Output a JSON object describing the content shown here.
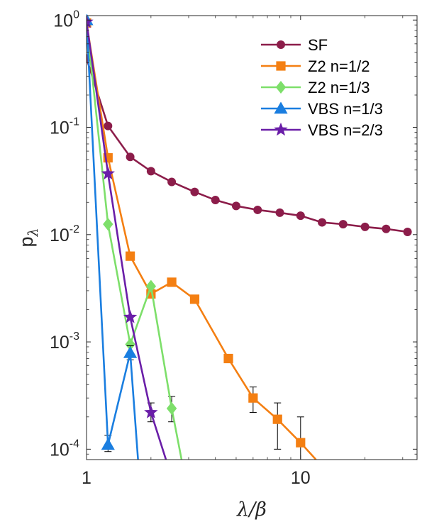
{
  "chart_data": {
    "type": "line",
    "title": "",
    "xlabel": "λ/β",
    "ylabel_main": "p",
    "ylabel_sub": "λ",
    "x_scale": "log",
    "y_scale": "log",
    "xlim": [
      1,
      35
    ],
    "ylim": [
      8e-05,
      1.1
    ],
    "x_ticks": [
      {
        "value": 1,
        "label": "1"
      },
      {
        "value": 10,
        "label": "10"
      }
    ],
    "y_ticks": [
      {
        "value": 1,
        "base": "10",
        "exp": "0"
      },
      {
        "value": 0.1,
        "base": "10",
        "exp": "-1"
      },
      {
        "value": 0.01,
        "base": "10",
        "exp": "-2"
      },
      {
        "value": 0.001,
        "base": "10",
        "exp": "-3"
      },
      {
        "value": 0.0001,
        "base": "10",
        "exp": "-4"
      }
    ],
    "grid": false,
    "legend_position": "top-right",
    "series": [
      {
        "name": "SF",
        "color": "#8c1d4a",
        "marker": "circle",
        "points": [
          [
            1,
            0.44
          ],
          [
            1.26,
            0.103
          ],
          [
            1.6,
            0.053
          ],
          [
            2.0,
            0.039
          ],
          [
            2.5,
            0.031
          ],
          [
            3.2,
            0.025
          ],
          [
            4.0,
            0.021
          ],
          [
            5.0,
            0.0185
          ],
          [
            6.3,
            0.017
          ],
          [
            8.0,
            0.016
          ],
          [
            10.0,
            0.015
          ],
          [
            12.6,
            0.013
          ],
          [
            15.8,
            0.0125
          ],
          [
            20.0,
            0.0118
          ],
          [
            25.1,
            0.0113
          ],
          [
            31.6,
            0.0106
          ]
        ]
      },
      {
        "name": "Z2 n=1/2",
        "color": "#f47f12",
        "marker": "square",
        "points": [
          [
            1,
            0.94
          ],
          [
            1.26,
            0.052
          ],
          [
            1.6,
            0.0063
          ],
          [
            2.0,
            0.0028
          ],
          [
            2.5,
            0.0036
          ],
          [
            3.2,
            0.0025
          ],
          [
            4.6,
            0.0007
          ],
          [
            6.0,
            0.0003
          ],
          [
            7.8,
            0.00019
          ],
          [
            10.0,
            0.000115
          ],
          [
            11.8,
            8e-05
          ]
        ],
        "error_bars": [
          {
            "x": 4.6,
            "low": 0.00065,
            "high": 0.00075
          },
          {
            "x": 6.0,
            "low": 0.00022,
            "high": 0.00038
          },
          {
            "x": 7.8,
            "low": 0.0001,
            "high": 0.00027
          },
          {
            "x": 10.0,
            "low": 8e-05,
            "high": 0.0002
          }
        ]
      },
      {
        "name": "Z2 n=1/3",
        "color": "#7ddf6a",
        "marker": "diamond",
        "points": [
          [
            1,
            0.95
          ],
          [
            1.26,
            0.0125
          ],
          [
            1.6,
            0.00095
          ],
          [
            2.0,
            0.0033
          ],
          [
            2.5,
            0.00024
          ],
          [
            2.78,
            8e-05
          ]
        ],
        "error_bars": [
          {
            "x": 2.5,
            "low": 0.00018,
            "high": 0.00031
          }
        ]
      },
      {
        "name": "VBS n=1/3",
        "color": "#1a7ee0",
        "marker": "triangle",
        "points": [
          [
            1,
            1.0
          ],
          [
            1.26,
            0.00011
          ],
          [
            1.6,
            0.00079
          ],
          [
            1.74,
            8e-05
          ]
        ],
        "error_bars": [
          {
            "x": 1.26,
            "low": 9.5e-05,
            "high": 0.000135
          },
          {
            "x": 1.6,
            "low": 0.00068,
            "high": 0.00092
          }
        ]
      },
      {
        "name": "VBS n=2/3",
        "color": "#6a1ea8",
        "marker": "star",
        "points": [
          [
            1,
            0.96
          ],
          [
            1.26,
            0.037
          ],
          [
            1.6,
            0.0017
          ],
          [
            2.0,
            0.00022
          ],
          [
            2.35,
            8e-05
          ]
        ],
        "error_bars": [
          {
            "x": 2.0,
            "low": 0.00018,
            "high": 0.00027
          }
        ]
      }
    ]
  }
}
